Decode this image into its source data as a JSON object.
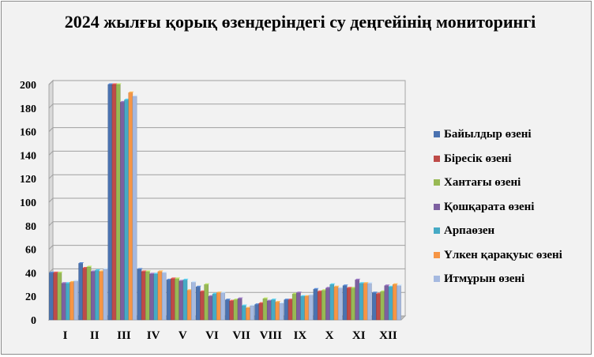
{
  "chart_data": {
    "type": "bar",
    "title": "2024  жылғы қорық өзендеріндегі  су деңгейінің мониторингі",
    "xlabel": "",
    "ylabel": "",
    "ylim": [
      0,
      200
    ],
    "yticks": [
      0,
      20,
      40,
      60,
      80,
      100,
      120,
      140,
      160,
      180,
      200
    ],
    "grid": true,
    "legend_position": "right",
    "style": "3d-clustered-column",
    "categories": [
      "I",
      "II",
      "III",
      "IV",
      "V",
      "VI",
      "VII",
      "VIII",
      "IX",
      "X",
      "XI",
      "XII"
    ],
    "series": [
      {
        "name": "Байылдыр өзені",
        "color": "#4a72b0",
        "values": [
          40,
          48,
          200,
          43,
          34,
          28,
          17,
          13,
          17,
          26,
          29,
          23
        ]
      },
      {
        "name": "Біресік өзені",
        "color": "#be4b48",
        "values": [
          40,
          44,
          200,
          41,
          35,
          24,
          16,
          14,
          17,
          24,
          27,
          22
        ]
      },
      {
        "name": "Хантағы өзені",
        "color": "#98b954",
        "values": [
          40,
          45,
          200,
          41,
          35,
          30,
          17,
          18,
          22,
          25,
          27,
          24
        ]
      },
      {
        "name": "Қошқарата өзені",
        "color": "#7d60a0",
        "values": [
          31,
          41,
          185,
          39,
          33,
          20,
          18,
          16,
          23,
          27,
          34,
          29
        ]
      },
      {
        "name": "Арпаөзен",
        "color": "#46aac5",
        "values": [
          31,
          42,
          187,
          39,
          34,
          22,
          12,
          17,
          20,
          30,
          31,
          28
        ]
      },
      {
        "name": "Үлкен қарақуыс өзені",
        "color": "#f69545",
        "values": [
          32,
          41,
          193,
          41,
          25,
          23,
          10,
          15,
          20,
          28,
          31,
          30
        ]
      },
      {
        "name": "Итмұрын өзені",
        "color": "#a5b9e0",
        "values": [
          33,
          43,
          190,
          40,
          32,
          23,
          12,
          14,
          21,
          27,
          31,
          29
        ]
      }
    ]
  }
}
